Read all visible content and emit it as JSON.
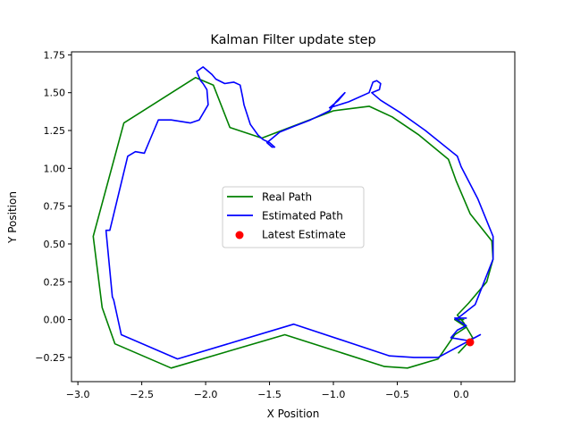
{
  "chart_data": {
    "type": "line",
    "title": "Kalman Filter update step",
    "xlabel": "X Position",
    "ylabel": "Y Position",
    "xlim": [
      -3.05,
      0.42
    ],
    "ylim": [
      -0.41,
      1.77
    ],
    "xticks": [
      -3.0,
      -2.5,
      -2.0,
      -1.5,
      -1.0,
      -0.5,
      0.0
    ],
    "xtick_labels": [
      "−3.0",
      "−2.5",
      "−2.0",
      "−1.5",
      "−1.0",
      "−0.5",
      "0.0"
    ],
    "yticks": [
      -0.25,
      0.0,
      0.25,
      0.5,
      0.75,
      1.0,
      1.25,
      1.5,
      1.75
    ],
    "ytick_labels": [
      "−0.25",
      "0.00",
      "0.25",
      "0.50",
      "0.75",
      "1.00",
      "1.25",
      "1.50",
      "1.75"
    ],
    "grid": false,
    "legend_position": "center",
    "series": [
      {
        "name": "Real Path",
        "kind": "line",
        "color": "#008000",
        "points": [
          [
            0.02,
            0.0
          ],
          [
            -0.05,
            0.0
          ],
          [
            0.04,
            -0.05
          ],
          [
            -0.05,
            -0.1
          ],
          [
            -0.18,
            -0.26
          ],
          [
            -0.42,
            -0.32
          ],
          [
            -0.6,
            -0.31
          ],
          [
            -1.38,
            -0.1
          ],
          [
            -2.27,
            -0.32
          ],
          [
            -2.71,
            -0.16
          ],
          [
            -2.81,
            0.08
          ],
          [
            -2.88,
            0.55
          ],
          [
            -2.64,
            1.3
          ],
          [
            -2.08,
            1.6
          ],
          [
            -1.94,
            1.55
          ],
          [
            -1.81,
            1.27
          ],
          [
            -1.56,
            1.2
          ],
          [
            -1.0,
            1.38
          ],
          [
            -0.72,
            1.41
          ],
          [
            -0.54,
            1.34
          ],
          [
            -0.33,
            1.22
          ],
          [
            -0.1,
            1.06
          ],
          [
            -0.04,
            0.92
          ],
          [
            0.07,
            0.7
          ],
          [
            0.24,
            0.52
          ],
          [
            0.25,
            0.4
          ],
          [
            0.2,
            0.25
          ],
          [
            0.06,
            0.11
          ],
          [
            -0.03,
            0.03
          ],
          [
            0.02,
            -0.02
          ],
          [
            0.09,
            -0.12
          ],
          [
            -0.02,
            -0.22
          ]
        ]
      },
      {
        "name": "Estimated Path",
        "kind": "line",
        "color": "#0000ff",
        "points": [
          [
            0.04,
            0.01
          ],
          [
            -0.05,
            0.01
          ],
          [
            0.04,
            -0.04
          ],
          [
            -0.03,
            -0.07
          ],
          [
            -0.06,
            -0.1
          ],
          [
            -0.08,
            -0.12
          ],
          [
            0.06,
            -0.14
          ],
          [
            0.15,
            -0.1
          ],
          [
            -0.18,
            -0.25
          ],
          [
            -0.37,
            -0.25
          ],
          [
            -0.56,
            -0.24
          ],
          [
            -1.31,
            -0.03
          ],
          [
            -2.22,
            -0.26
          ],
          [
            -2.66,
            -0.1
          ],
          [
            -2.72,
            0.13
          ],
          [
            -2.73,
            0.15
          ],
          [
            -2.78,
            0.59
          ],
          [
            -2.75,
            0.59
          ],
          [
            -2.61,
            1.08
          ],
          [
            -2.55,
            1.11
          ],
          [
            -2.48,
            1.1
          ],
          [
            -2.43,
            1.2
          ],
          [
            -2.37,
            1.32
          ],
          [
            -2.27,
            1.32
          ],
          [
            -2.12,
            1.3
          ],
          [
            -2.05,
            1.32
          ],
          [
            -1.98,
            1.42
          ],
          [
            -1.99,
            1.52
          ],
          [
            -2.02,
            1.56
          ],
          [
            -2.04,
            1.58
          ],
          [
            -2.07,
            1.64
          ],
          [
            -2.02,
            1.67
          ],
          [
            -1.95,
            1.62
          ],
          [
            -1.92,
            1.59
          ],
          [
            -1.85,
            1.56
          ],
          [
            -1.78,
            1.57
          ],
          [
            -1.73,
            1.55
          ],
          [
            -1.71,
            1.47
          ],
          [
            -1.7,
            1.42
          ],
          [
            -1.65,
            1.29
          ],
          [
            -1.59,
            1.22
          ],
          [
            -1.55,
            1.19
          ],
          [
            -1.5,
            1.17
          ],
          [
            -1.46,
            1.14
          ],
          [
            -1.48,
            1.14
          ],
          [
            -1.52,
            1.17
          ],
          [
            -1.42,
            1.24
          ],
          [
            -1.3,
            1.28
          ],
          [
            -1.18,
            1.32
          ],
          [
            -1.03,
            1.38
          ],
          [
            -0.98,
            1.44
          ],
          [
            -0.91,
            1.5
          ],
          [
            -0.96,
            1.45
          ],
          [
            -1.03,
            1.4
          ],
          [
            -0.88,
            1.44
          ],
          [
            -0.72,
            1.5
          ],
          [
            -0.69,
            1.57
          ],
          [
            -0.66,
            1.58
          ],
          [
            -0.63,
            1.56
          ],
          [
            -0.64,
            1.52
          ],
          [
            -0.7,
            1.5
          ],
          [
            -0.63,
            1.45
          ],
          [
            -0.48,
            1.37
          ],
          [
            -0.28,
            1.25
          ],
          [
            -0.03,
            1.08
          ],
          [
            0.0,
            1.01
          ],
          [
            0.13,
            0.8
          ],
          [
            0.25,
            0.55
          ],
          [
            0.25,
            0.4
          ],
          [
            0.11,
            0.1
          ],
          [
            -0.04,
            0.0
          ]
        ]
      },
      {
        "name": "Latest Estimate",
        "kind": "scatter",
        "color": "#ff0000",
        "points": [
          [
            0.07,
            -0.15
          ]
        ]
      }
    ]
  }
}
